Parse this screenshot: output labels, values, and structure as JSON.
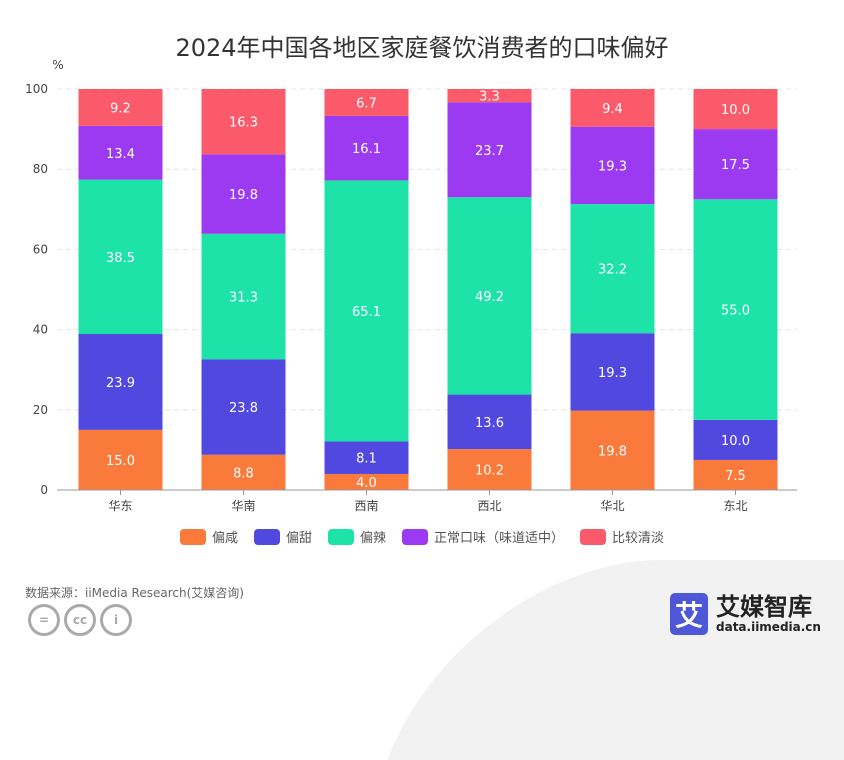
{
  "chart_data": {
    "type": "bar",
    "stacked": true,
    "title": "2024年中国各地区家庭餐饮消费者的口味偏好",
    "ylabel": "%",
    "ylim": [
      0,
      100
    ],
    "yticks": [
      0,
      20,
      40,
      60,
      80,
      100
    ],
    "grid": true,
    "legend_position": "bottom",
    "categories": [
      "华东",
      "华南",
      "西南",
      "西北",
      "华北",
      "东北"
    ],
    "series": [
      {
        "name": "偏咸",
        "color": "#f97a3a",
        "values": [
          15.0,
          8.8,
          4.0,
          10.2,
          19.8,
          7.5
        ]
      },
      {
        "name": "偏甜",
        "color": "#5148e0",
        "values": [
          23.9,
          23.8,
          8.1,
          13.6,
          19.3,
          10.0
        ]
      },
      {
        "name": "偏辣",
        "color": "#1ee3a8",
        "values": [
          38.5,
          31.3,
          65.1,
          49.2,
          32.2,
          55.0
        ]
      },
      {
        "name": "正常口味（味道适中）",
        "color": "#9b3af0",
        "values": [
          13.4,
          19.8,
          16.1,
          23.7,
          19.3,
          17.5
        ]
      },
      {
        "name": "比较清淡",
        "color": "#fa5a6a",
        "values": [
          9.2,
          16.3,
          6.7,
          3.3,
          9.4,
          10.0
        ]
      }
    ]
  },
  "footer": {
    "source": "数据来源：iiMedia Research(艾媒咨询)",
    "logo_name": "艾媒智库",
    "logo_url": "data.iimedia.cn",
    "logo_mark": "艾"
  }
}
